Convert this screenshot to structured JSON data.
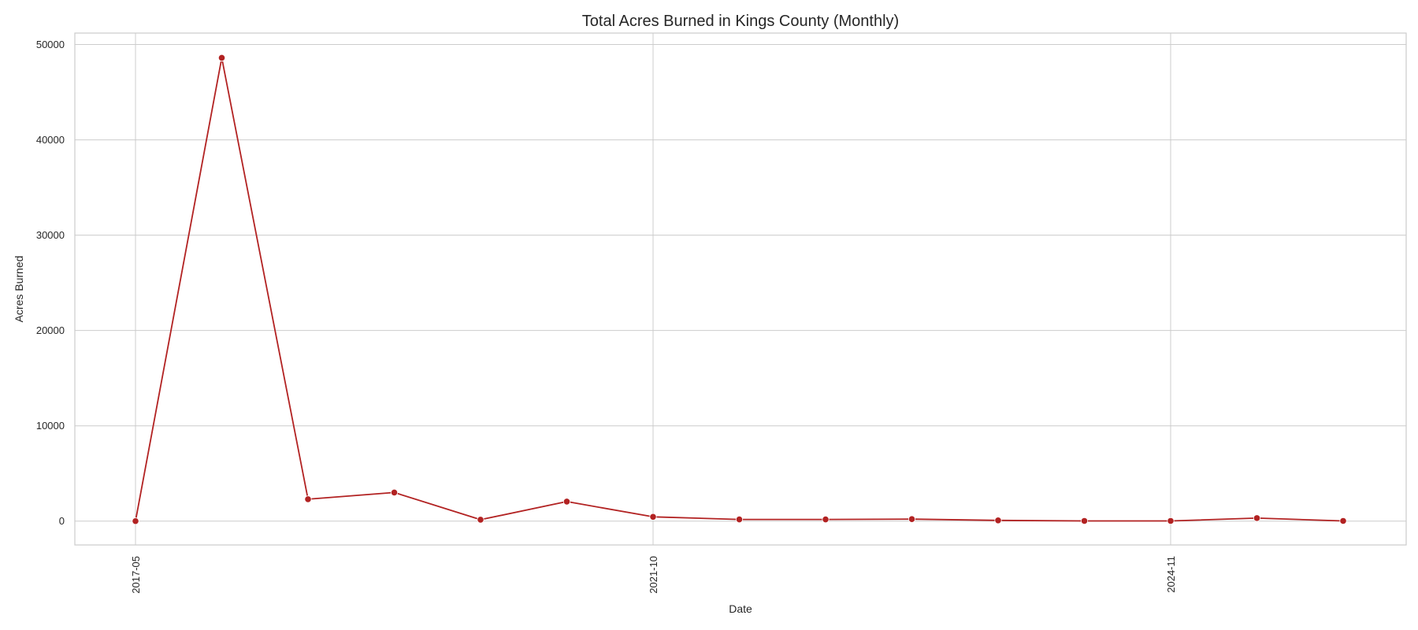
{
  "chart_data": {
    "type": "line",
    "title": "Total Acres Burned in Kings County (Monthly)",
    "xlabel": "Date",
    "ylabel": "Acres Burned",
    "color": "#b22222",
    "grid": true,
    "ylim": [
      -2500,
      51200
    ],
    "yticks": [
      0,
      10000,
      20000,
      30000,
      40000,
      50000
    ],
    "xticks": [
      {
        "label": "2017-05",
        "index": 0
      },
      {
        "label": "2021-10",
        "index": 6
      },
      {
        "label": "2024-11",
        "index": 12
      }
    ],
    "series": [
      {
        "values": [
          0,
          48600,
          2300,
          3000,
          150,
          2050,
          450,
          180,
          180,
          210,
          80,
          20,
          20,
          320,
          20
        ]
      }
    ]
  }
}
